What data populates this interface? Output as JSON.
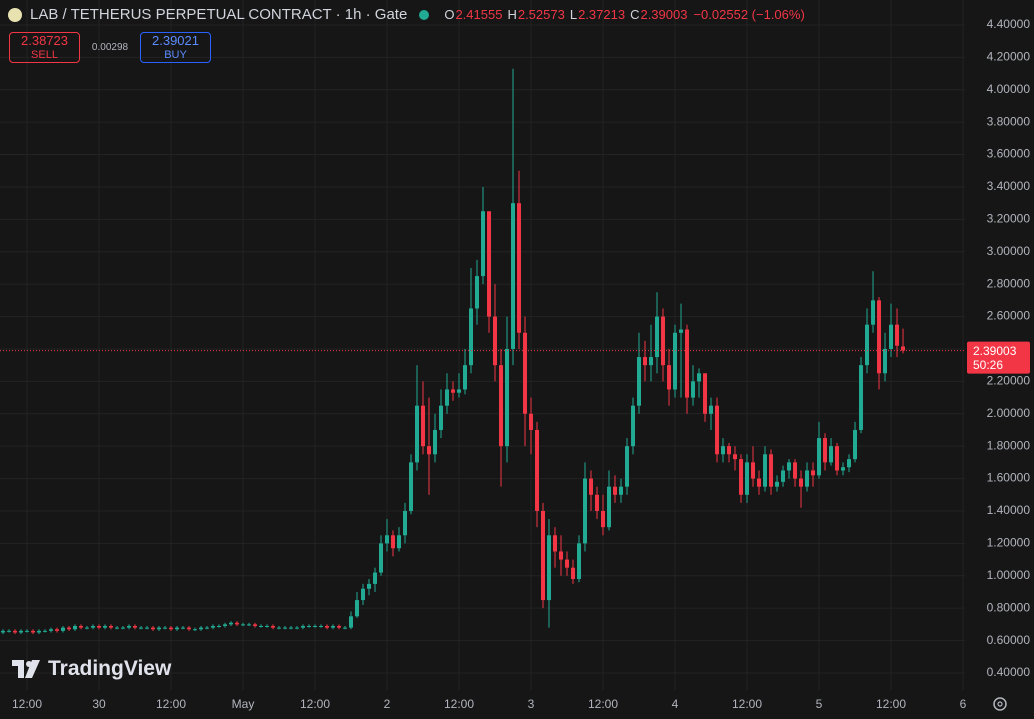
{
  "chart_data": {
    "type": "candlestick",
    "title": "LAB / TETHERUS PERPETUAL CONTRACT · 1h · Gate",
    "ohlc_labels": [
      "O",
      "H",
      "L",
      "C"
    ],
    "change": "−0.02552 (−1.06%)",
    "sell": {
      "price": 2.38723,
      "label": "SELL"
    },
    "spread": 0.00298,
    "buy": {
      "price": 2.39021,
      "label": "BUY"
    },
    "countdown": "50:26",
    "logo": "TradingView",
    "up_color": "#22ab94",
    "down_color": "#f23645",
    "grid": true,
    "ylim": [
      0.295,
      4.554
    ],
    "yticks": [
      {
        "value": 0.4,
        "label": "0.40000"
      },
      {
        "value": 0.6,
        "label": "0.60000"
      },
      {
        "value": 0.8,
        "label": "0.80000"
      },
      {
        "value": 1.0,
        "label": "1.00000"
      },
      {
        "value": 1.2,
        "label": "1.20000"
      },
      {
        "value": 1.4,
        "label": "1.40000"
      },
      {
        "value": 1.6,
        "label": "1.60000"
      },
      {
        "value": 1.8,
        "label": "1.80000"
      },
      {
        "value": 2.0,
        "label": "2.00000"
      },
      {
        "value": 2.2,
        "label": "2.20000"
      },
      {
        "value": 2.4,
        "label": "2.40000"
      },
      {
        "value": 2.6,
        "label": "2.60000"
      },
      {
        "value": 2.8,
        "label": "2.80000"
      },
      {
        "value": 3.0,
        "label": "3.00000"
      },
      {
        "value": 3.2,
        "label": "3.20000"
      },
      {
        "value": 3.4,
        "label": "3.40000"
      },
      {
        "value": 3.6,
        "label": "3.60000"
      },
      {
        "value": 3.8,
        "label": "3.80000"
      },
      {
        "value": 4.0,
        "label": "4.00000"
      },
      {
        "value": 4.2,
        "label": "4.20000"
      },
      {
        "value": 4.4,
        "label": "4.40000"
      }
    ],
    "xlim": [
      -0.5,
      160.33
    ],
    "xticks": [
      {
        "value": 4,
        "label": "12:00"
      },
      {
        "value": 16,
        "label": "30"
      },
      {
        "value": 28,
        "label": "12:00"
      },
      {
        "value": 40,
        "label": "May"
      },
      {
        "value": 52,
        "label": "12:00"
      },
      {
        "value": 64,
        "label": "2"
      },
      {
        "value": 76,
        "label": "12:00"
      },
      {
        "value": 88,
        "label": "3"
      },
      {
        "value": 100,
        "label": "12:00"
      },
      {
        "value": 112,
        "label": "4"
      },
      {
        "value": 124,
        "label": "12:00"
      },
      {
        "value": 136,
        "label": "5"
      },
      {
        "value": 148,
        "label": "12:00"
      },
      {
        "value": 160,
        "label": "6"
      }
    ],
    "open": [
      0.65,
      0.66,
      0.66,
      0.65,
      0.66,
      0.66,
      0.65,
      0.66,
      0.66,
      0.67,
      0.66,
      0.68,
      0.67,
      0.69,
      0.68,
      0.68,
      0.69,
      0.68,
      0.69,
      0.68,
      0.68,
      0.68,
      0.69,
      0.68,
      0.68,
      0.68,
      0.67,
      0.68,
      0.68,
      0.67,
      0.68,
      0.68,
      0.67,
      0.67,
      0.68,
      0.68,
      0.69,
      0.69,
      0.7,
      0.71,
      0.7,
      0.7,
      0.7,
      0.69,
      0.69,
      0.69,
      0.68,
      0.68,
      0.68,
      0.68,
      0.68,
      0.69,
      0.69,
      0.69,
      0.69,
      0.68,
      0.69,
      0.68,
      0.68,
      0.75,
      0.85,
      0.92,
      0.95,
      1.02,
      1.2,
      1.25,
      1.17,
      1.25,
      1.4,
      1.7,
      2.05,
      1.8,
      1.75,
      1.9,
      2.05,
      2.15,
      2.13,
      2.15,
      2.3,
      2.65,
      2.85,
      3.25,
      2.6,
      2.3,
      1.8,
      2.4,
      3.3,
      2.5,
      2.0,
      1.9,
      1.4,
      0.85,
      1.25,
      1.15,
      1.1,
      1.05,
      0.98,
      1.2,
      1.6,
      1.5,
      1.4,
      1.3,
      1.55,
      1.5,
      1.55,
      1.8,
      2.05,
      2.35,
      2.3,
      2.35,
      2.6,
      2.3,
      2.15,
      2.5,
      2.52,
      2.1,
      2.2,
      2.25,
      2.0,
      2.05,
      1.75,
      1.8,
      1.75,
      1.72,
      1.5,
      1.7,
      1.6,
      1.55,
      1.75,
      1.55,
      1.58,
      1.65,
      1.7,
      1.6,
      1.55,
      1.65,
      1.62,
      1.85,
      1.7,
      1.8,
      1.65,
      1.67,
      1.72,
      1.9,
      2.3,
      2.55,
      2.7,
      2.25,
      2.4,
      2.55,
      2.41555
    ],
    "high": [
      0.67,
      0.67,
      0.67,
      0.67,
      0.67,
      0.67,
      0.67,
      0.67,
      0.68,
      0.68,
      0.69,
      0.69,
      0.7,
      0.7,
      0.69,
      0.7,
      0.7,
      0.7,
      0.7,
      0.69,
      0.69,
      0.7,
      0.7,
      0.69,
      0.69,
      0.69,
      0.69,
      0.69,
      0.69,
      0.69,
      0.69,
      0.69,
      0.68,
      0.69,
      0.69,
      0.7,
      0.7,
      0.71,
      0.72,
      0.72,
      0.71,
      0.71,
      0.71,
      0.7,
      0.7,
      0.7,
      0.69,
      0.69,
      0.69,
      0.69,
      0.7,
      0.7,
      0.7,
      0.7,
      0.7,
      0.7,
      0.7,
      0.69,
      0.78,
      0.9,
      0.95,
      0.98,
      1.05,
      1.25,
      1.35,
      1.28,
      1.3,
      1.45,
      1.75,
      2.3,
      2.2,
      2.1,
      2.0,
      2.15,
      2.25,
      2.2,
      2.25,
      2.4,
      2.9,
      2.95,
      3.4,
      3.25,
      2.8,
      2.4,
      2.6,
      4.13,
      3.5,
      2.6,
      2.1,
      1.95,
      1.45,
      1.35,
      1.3,
      1.25,
      1.15,
      1.1,
      1.25,
      1.7,
      1.65,
      1.55,
      1.5,
      1.65,
      1.62,
      1.6,
      1.85,
      2.1,
      2.5,
      2.45,
      2.55,
      2.75,
      2.65,
      2.4,
      2.55,
      2.68,
      2.55,
      2.3,
      2.28,
      2.25,
      2.1,
      2.1,
      1.85,
      1.82,
      1.8,
      1.75,
      1.75,
      1.8,
      1.65,
      1.8,
      1.78,
      1.62,
      1.68,
      1.72,
      1.72,
      1.65,
      1.7,
      1.7,
      1.95,
      1.88,
      1.85,
      1.82,
      1.7,
      1.75,
      1.95,
      2.35,
      2.65,
      2.88,
      2.72,
      2.5,
      2.68,
      2.65,
      2.52573
    ],
    "low": [
      0.64,
      0.65,
      0.64,
      0.64,
      0.65,
      0.64,
      0.64,
      0.65,
      0.65,
      0.65,
      0.65,
      0.66,
      0.66,
      0.67,
      0.67,
      0.67,
      0.67,
      0.67,
      0.67,
      0.67,
      0.67,
      0.67,
      0.67,
      0.67,
      0.67,
      0.66,
      0.66,
      0.67,
      0.66,
      0.66,
      0.67,
      0.66,
      0.66,
      0.66,
      0.67,
      0.67,
      0.68,
      0.68,
      0.69,
      0.69,
      0.69,
      0.69,
      0.68,
      0.68,
      0.68,
      0.67,
      0.67,
      0.67,
      0.67,
      0.67,
      0.67,
      0.68,
      0.68,
      0.68,
      0.67,
      0.67,
      0.67,
      0.67,
      0.67,
      0.74,
      0.82,
      0.88,
      0.9,
      1.0,
      1.15,
      1.12,
      1.15,
      1.2,
      1.38,
      1.65,
      1.75,
      1.5,
      1.7,
      1.85,
      2.0,
      2.08,
      2.1,
      2.12,
      2.25,
      2.55,
      2.8,
      2.5,
      2.2,
      1.55,
      1.7,
      2.3,
      2.4,
      1.8,
      1.75,
      1.3,
      0.8,
      0.68,
      1.05,
      1.0,
      1.0,
      0.95,
      0.96,
      1.15,
      1.4,
      1.35,
      1.25,
      1.28,
      1.45,
      1.45,
      1.5,
      1.75,
      2.0,
      2.2,
      2.2,
      2.25,
      2.2,
      2.05,
      2.1,
      2.1,
      2.0,
      2.05,
      2.1,
      1.95,
      1.9,
      1.7,
      1.7,
      1.7,
      1.65,
      1.45,
      1.45,
      1.55,
      1.5,
      1.52,
      1.5,
      1.52,
      1.55,
      1.6,
      1.55,
      1.42,
      1.52,
      1.55,
      1.6,
      1.65,
      1.68,
      1.62,
      1.62,
      1.64,
      1.7,
      1.88,
      2.25,
      2.5,
      2.15,
      2.2,
      2.35,
      2.35,
      2.37213
    ],
    "close": [
      0.66,
      0.66,
      0.65,
      0.66,
      0.66,
      0.65,
      0.66,
      0.66,
      0.67,
      0.66,
      0.68,
      0.67,
      0.69,
      0.68,
      0.68,
      0.69,
      0.68,
      0.69,
      0.68,
      0.68,
      0.68,
      0.69,
      0.68,
      0.68,
      0.68,
      0.67,
      0.68,
      0.68,
      0.67,
      0.68,
      0.68,
      0.67,
      0.67,
      0.68,
      0.68,
      0.69,
      0.69,
      0.7,
      0.71,
      0.7,
      0.7,
      0.7,
      0.69,
      0.69,
      0.69,
      0.68,
      0.68,
      0.68,
      0.68,
      0.68,
      0.69,
      0.69,
      0.69,
      0.69,
      0.68,
      0.69,
      0.68,
      0.68,
      0.75,
      0.85,
      0.92,
      0.95,
      1.02,
      1.2,
      1.25,
      1.17,
      1.25,
      1.4,
      1.7,
      2.05,
      1.8,
      1.75,
      1.9,
      2.05,
      2.15,
      2.13,
      2.15,
      2.3,
      2.65,
      2.85,
      3.25,
      2.6,
      2.3,
      1.8,
      2.4,
      3.3,
      2.5,
      2.0,
      1.9,
      1.4,
      0.85,
      1.25,
      1.15,
      1.1,
      1.05,
      0.98,
      1.2,
      1.6,
      1.5,
      1.4,
      1.3,
      1.55,
      1.5,
      1.55,
      1.8,
      2.05,
      2.35,
      2.3,
      2.35,
      2.6,
      2.3,
      2.15,
      2.5,
      2.52,
      2.1,
      2.2,
      2.25,
      2.0,
      2.05,
      1.75,
      1.8,
      1.75,
      1.72,
      1.5,
      1.7,
      1.6,
      1.55,
      1.75,
      1.55,
      1.58,
      1.65,
      1.7,
      1.6,
      1.55,
      1.65,
      1.62,
      1.85,
      1.7,
      1.8,
      1.65,
      1.67,
      1.72,
      1.9,
      2.3,
      2.55,
      2.7,
      2.25,
      2.4,
      2.55,
      2.42,
      2.39003
    ]
  }
}
